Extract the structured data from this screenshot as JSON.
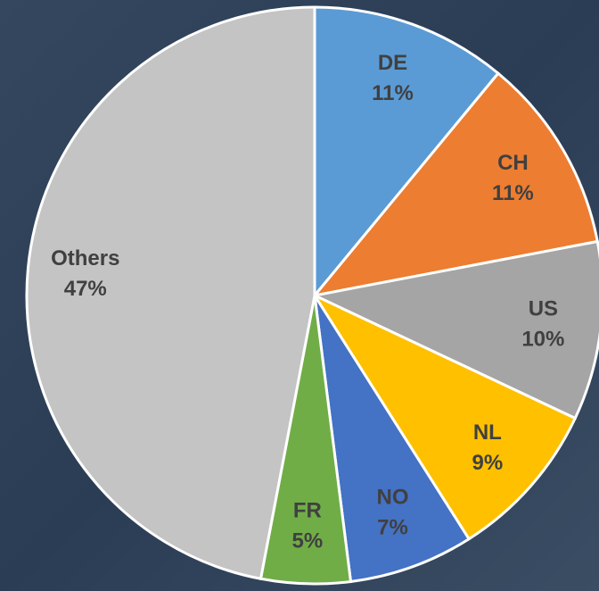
{
  "chart_data": {
    "type": "pie",
    "categories": [
      "DE",
      "CH",
      "US",
      "NL",
      "NO",
      "FR",
      "Others"
    ],
    "values": [
      11,
      11,
      10,
      9,
      7,
      5,
      47
    ],
    "value_labels": [
      "11%",
      "11%",
      "10%",
      "9%",
      "7%",
      "5%",
      "47%"
    ],
    "colors": [
      "#5b9bd5",
      "#ed7d31",
      "#a5a5a5",
      "#ffc000",
      "#4472c4",
      "#70ad47",
      "#c4c4c4"
    ]
  }
}
